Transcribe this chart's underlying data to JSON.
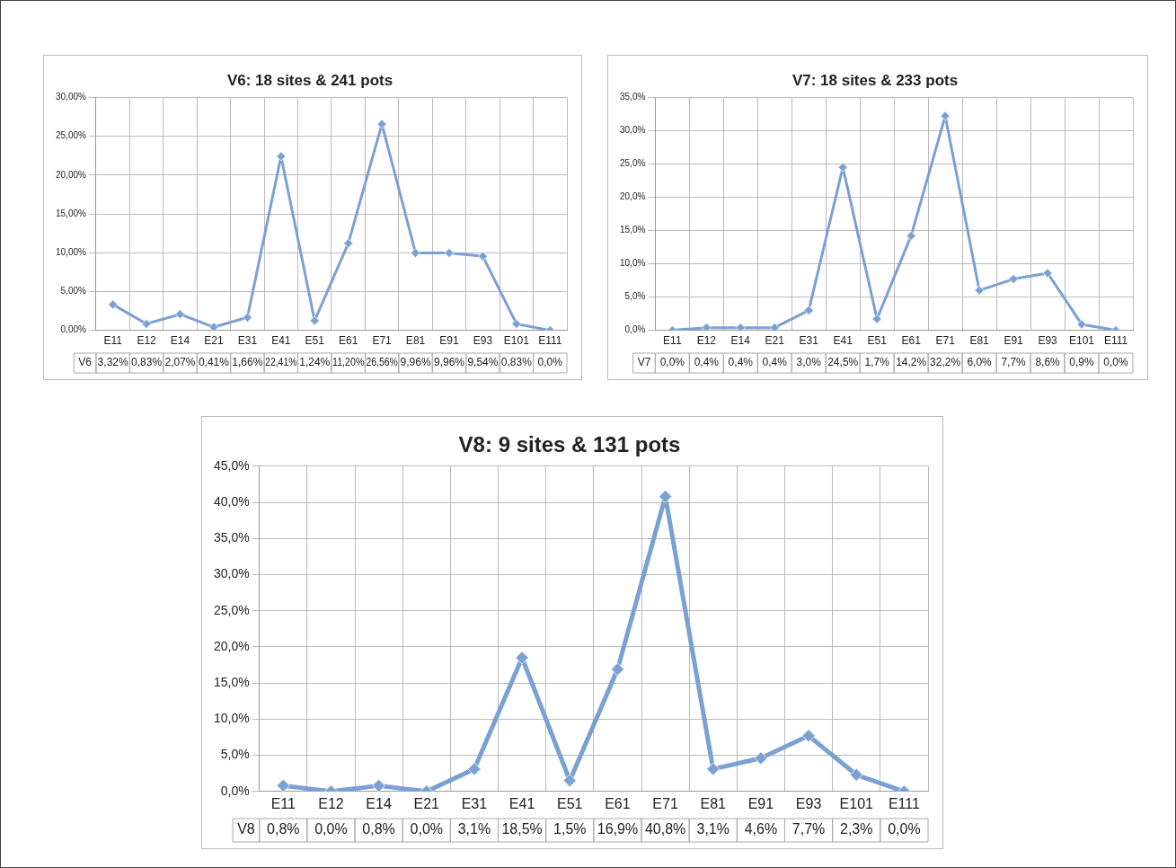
{
  "chart_data": [
    {
      "type": "line",
      "title": "V6: 18 sites & 241 pots",
      "categories": [
        "E11",
        "E12",
        "E14",
        "E21",
        "E31",
        "E41",
        "E51",
        "E61",
        "E71",
        "E81",
        "E91",
        "E93",
        "E101",
        "E111"
      ],
      "series": [
        {
          "name": "V6",
          "color": "#7ba0d4",
          "values": [
            3.32,
            0.83,
            2.07,
            0.41,
            1.66,
            22.41,
            1.24,
            11.2,
            26.56,
            9.96,
            9.96,
            9.54,
            0.83,
            0.0
          ],
          "value_labels": [
            "3,32%",
            "0,83%",
            "2,07%",
            "0,41%",
            "1,66%",
            "22,41%",
            "1,24%",
            "11,20%",
            "26,56%",
            "9,96%",
            "9,96%",
            "9,54%",
            "0,83%",
            "0,0%"
          ]
        }
      ],
      "ylim": [
        0,
        30
      ],
      "yticks": [
        {
          "value": 0,
          "label": "0,00%"
        },
        {
          "value": 5,
          "label": "5,00%"
        },
        {
          "value": 10,
          "label": "10,00%"
        },
        {
          "value": 15,
          "label": "15,00%"
        },
        {
          "value": 20,
          "label": "20,00%"
        },
        {
          "value": 25,
          "label": "25,00%"
        },
        {
          "value": 30,
          "label": "30,00%"
        }
      ],
      "grid": true,
      "legend": false,
      "marker": "diamond",
      "line_style": "solid"
    },
    {
      "type": "line",
      "title": "V7: 18 sites & 233 pots",
      "categories": [
        "E11",
        "E12",
        "E14",
        "E21",
        "E31",
        "E41",
        "E51",
        "E61",
        "E71",
        "E81",
        "E91",
        "E93",
        "E101",
        "E111"
      ],
      "series": [
        {
          "name": "V7",
          "color": "#7ba0d4",
          "values": [
            0.0,
            0.4,
            0.4,
            0.4,
            3.0,
            24.5,
            1.7,
            14.2,
            32.2,
            6.0,
            7.7,
            8.6,
            0.9,
            0.0
          ],
          "value_labels": [
            "0,0%",
            "0,4%",
            "0,4%",
            "0,4%",
            "3,0%",
            "24,5%",
            "1,7%",
            "14,2%",
            "32,2%",
            "6,0%",
            "7,7%",
            "8,6%",
            "0,9%",
            "0,0%"
          ]
        }
      ],
      "ylim": [
        0,
        35
      ],
      "yticks": [
        {
          "value": 0,
          "label": "0,0%"
        },
        {
          "value": 5,
          "label": "5,0%"
        },
        {
          "value": 10,
          "label": "10,0%"
        },
        {
          "value": 15,
          "label": "15,0%"
        },
        {
          "value": 20,
          "label": "20,0%"
        },
        {
          "value": 25,
          "label": "25,0%"
        },
        {
          "value": 30,
          "label": "30,0%"
        },
        {
          "value": 35,
          "label": "35,0%"
        }
      ],
      "grid": true,
      "legend": false,
      "marker": "diamond",
      "line_style": "solid"
    },
    {
      "type": "line",
      "title": "V8: 9 sites & 131 pots",
      "categories": [
        "E11",
        "E12",
        "E14",
        "E21",
        "E31",
        "E41",
        "E51",
        "E61",
        "E71",
        "E81",
        "E91",
        "E93",
        "E101",
        "E111"
      ],
      "series": [
        {
          "name": "V8",
          "color": "#7ba0d4",
          "values": [
            0.8,
            0.0,
            0.8,
            0.0,
            3.1,
            18.5,
            1.5,
            16.9,
            40.8,
            3.1,
            4.6,
            7.7,
            2.3,
            0.0
          ],
          "value_labels": [
            "0,8%",
            "0,0%",
            "0,8%",
            "0,0%",
            "3,1%",
            "18,5%",
            "1,5%",
            "16,9%",
            "40,8%",
            "3,1%",
            "4,6%",
            "7,7%",
            "2,3%",
            "0,0%"
          ]
        }
      ],
      "ylim": [
        0,
        45
      ],
      "yticks": [
        {
          "value": 0,
          "label": "0,0%"
        },
        {
          "value": 5,
          "label": "5,0%"
        },
        {
          "value": 10,
          "label": "10,0%"
        },
        {
          "value": 15,
          "label": "15,0%"
        },
        {
          "value": 20,
          "label": "20,0%"
        },
        {
          "value": 25,
          "label": "25,0%"
        },
        {
          "value": 30,
          "label": "30,0%"
        },
        {
          "value": 35,
          "label": "35,0%"
        },
        {
          "value": 40,
          "label": "40,0%"
        },
        {
          "value": 45,
          "label": "45,0%"
        }
      ],
      "grid": true,
      "legend": false,
      "marker": "diamond",
      "line_style": "solid"
    }
  ]
}
